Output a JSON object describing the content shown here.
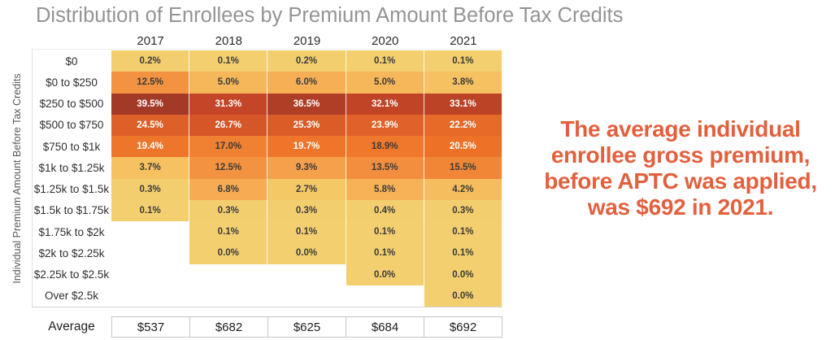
{
  "title": "Distribution of Enrollees by Premium Amount Before Tax Credits",
  "y_axis_label": "Individual Premium Amount Before Tax Credits",
  "average_row": {
    "label": "Average",
    "values": [
      "$537",
      "$682",
      "$625",
      "$684",
      "$692"
    ]
  },
  "callout": {
    "lines": [
      "The average individual",
      "enrollee gross premium,",
      "before APTC was applied,",
      "was $692 in 2021."
    ],
    "color": "#E2603D"
  },
  "chart_data": {
    "type": "heatmap",
    "title": "Distribution of Enrollees by Premium Amount Before Tax Credits",
    "xlabel": "",
    "ylabel": "Individual Premium Amount Before Tax Credits",
    "columns": [
      "2017",
      "2018",
      "2019",
      "2020",
      "2021"
    ],
    "rows": [
      "$0",
      "$0 to $250",
      "$250 to $500",
      "$500 to $750",
      "$750 to $1k",
      "$1k to $1.25k",
      "$1.25k to $1.5k",
      "$1.5k to $1.75k",
      "$1.75k to $2k",
      "$2k to $2.25k",
      "$2.25k to $2.5k",
      "Over $2.5k"
    ],
    "values_pct": [
      [
        0.2,
        0.1,
        0.2,
        0.1,
        0.1
      ],
      [
        12.5,
        5.0,
        6.0,
        5.0,
        3.8
      ],
      [
        39.5,
        31.3,
        36.5,
        32.1,
        33.1
      ],
      [
        24.5,
        26.7,
        25.3,
        23.9,
        22.2
      ],
      [
        19.4,
        17.0,
        19.7,
        18.9,
        20.5
      ],
      [
        3.7,
        12.5,
        9.3,
        13.5,
        15.5
      ],
      [
        0.3,
        6.8,
        2.7,
        5.8,
        4.2
      ],
      [
        0.1,
        0.3,
        0.3,
        0.4,
        0.3
      ],
      [
        null,
        0.1,
        0.1,
        0.1,
        0.1
      ],
      [
        null,
        0.0,
        0.0,
        0.1,
        0.1
      ],
      [
        null,
        null,
        null,
        0.0,
        0.0
      ],
      [
        null,
        null,
        null,
        null,
        0.0
      ]
    ],
    "averages": [
      "$537",
      "$682",
      "$625",
      "$684",
      "$692"
    ],
    "value_suffix": "%",
    "legend": "none",
    "color_scale": {
      "stops": [
        [
          0,
          "#F3CF6F"
        ],
        [
          3,
          "#F5C765"
        ],
        [
          6,
          "#F7AF55"
        ],
        [
          12.5,
          "#F39241"
        ],
        [
          20,
          "#EE7428"
        ],
        [
          30,
          "#C94727"
        ],
        [
          40,
          "#A13927"
        ]
      ],
      "text_white_threshold": 19,
      "text_dark_color": "#3B3B3B",
      "text_light_color": "#FFFFFF"
    }
  }
}
